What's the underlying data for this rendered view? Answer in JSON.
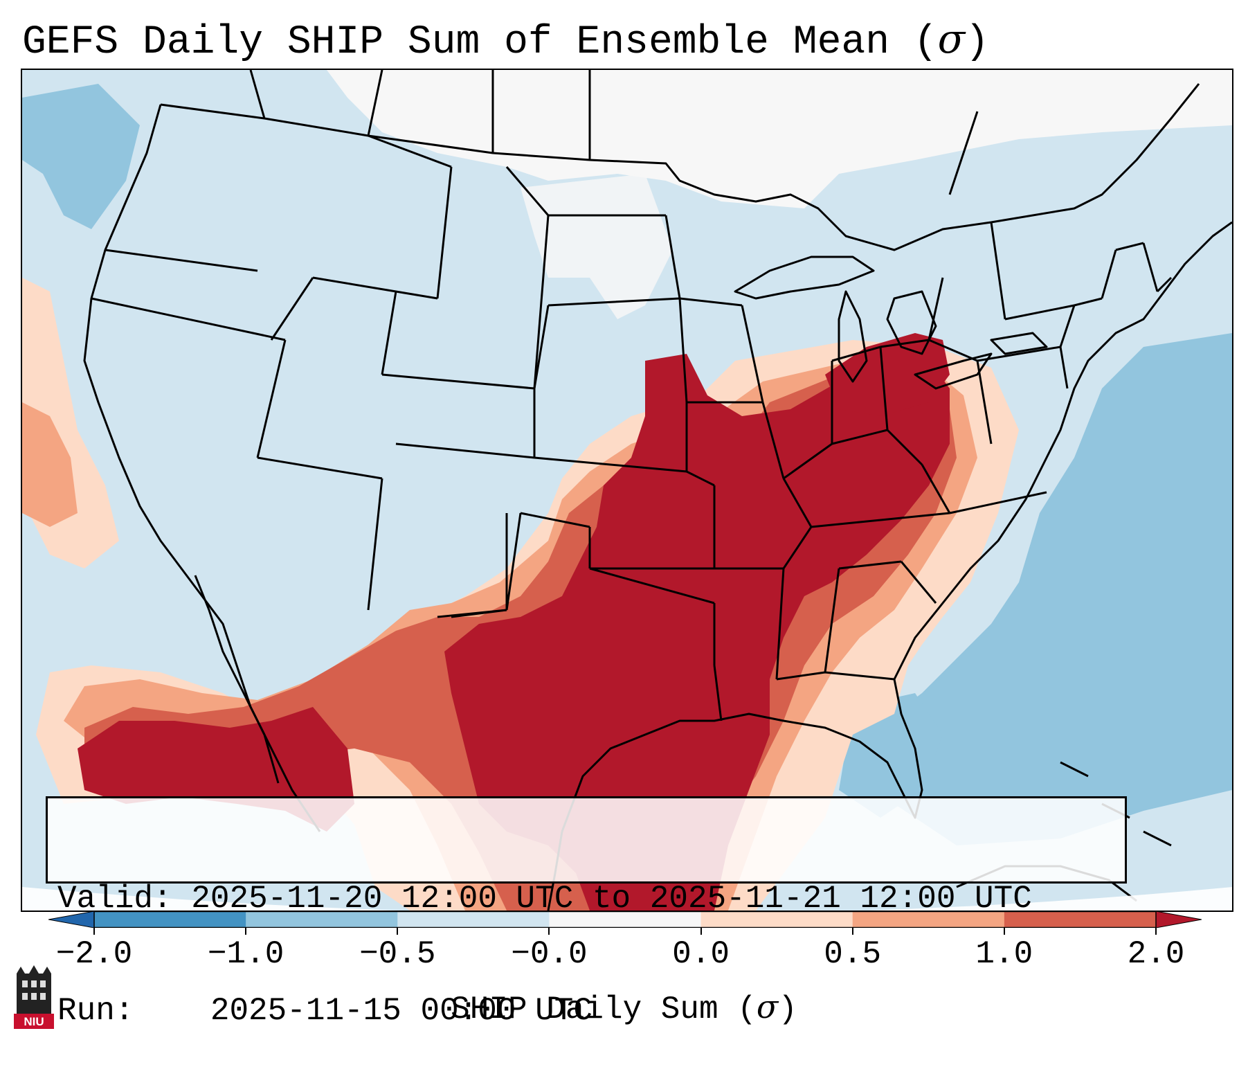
{
  "title": {
    "text": "GEFS Daily SHIP Sum of Ensemble Mean (",
    "symbol": "σ",
    "close": ")"
  },
  "info": {
    "valid_label": "Valid:",
    "valid_value": "2025-11-20 12:00 UTC to 2025-11-21 12:00 UTC",
    "run_label": "Run:",
    "run_value": "2025-11-15 00:00 UTC"
  },
  "colorbar": {
    "label_text": "SHIP Daily Sum (",
    "label_symbol": "σ",
    "label_close": ")",
    "tick_labels": [
      "−2.0",
      "−1.0",
      "−0.5",
      "−0.0",
      "0.0",
      "0.5",
      "1.0",
      "2.0"
    ],
    "colors": [
      "#2166ac",
      "#4393c3",
      "#92c5de",
      "#d1e5f0",
      "#f7f7f7",
      "#fddbc7",
      "#f4a582",
      "#d6604d",
      "#b2182b"
    ]
  },
  "logo": {
    "text": "NIU",
    "color": "#c8102e"
  },
  "map": {
    "projection": "Lambert Conformal",
    "region": "Contiguous United States",
    "coastline_color": "#000000",
    "border_color": "#000000"
  }
}
